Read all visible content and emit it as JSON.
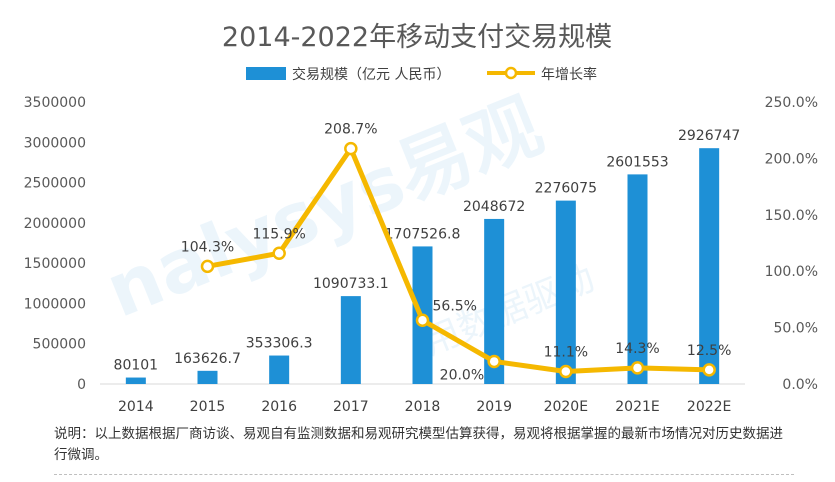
{
  "chart_data": {
    "type": "bar",
    "title": "2014-2022年移动支付交易规模",
    "categories": [
      "2014",
      "2015",
      "2016",
      "2017",
      "2018",
      "2019",
      "2020E",
      "2021E",
      "2022E"
    ],
    "series": [
      {
        "name": "交易规模（亿元 人民币）",
        "type": "bar",
        "axis": "left",
        "color": "#1e90d6",
        "values": [
          80101,
          163626.7,
          353306.3,
          1090733.1,
          1707526.8,
          2048672,
          2276075,
          2601553,
          2926747
        ],
        "labels": [
          "80101",
          "163626.7",
          "353306.3",
          "1090733.1",
          "1707526.8",
          "2048672",
          "2276075",
          "2601553",
          "2926747"
        ]
      },
      {
        "name": "年增长率",
        "type": "line",
        "axis": "right",
        "color": "#f5b800",
        "values": [
          null,
          104.3,
          115.9,
          208.7,
          56.5,
          20.0,
          11.1,
          14.3,
          12.5
        ],
        "labels": [
          "",
          "104.3%",
          "115.9%",
          "208.7%",
          "56.5%",
          "20.0%",
          "11.1%",
          "14.3%",
          "12.5%"
        ]
      }
    ],
    "y_left": {
      "range": [
        0,
        3500000
      ],
      "ticks": [
        "0",
        "500000",
        "1000000",
        "1500000",
        "2000000",
        "2500000",
        "3000000",
        "3500000"
      ]
    },
    "y_right": {
      "range": [
        0,
        250
      ],
      "unit": "%",
      "ticks": [
        "0.0%",
        "50.0%",
        "100.0%",
        "150.0%",
        "200.0%",
        "250.0%"
      ]
    },
    "legend_position": "top-center",
    "grid": false
  },
  "footnote": "说明：以上数据根据厂商访谈、易观自有监测数据和易观研究模型估算获得，易观将根据掌握的最新市场情况对历史数据进行微调。",
  "watermark": {
    "brand": "nalysys易观",
    "slogan": "用数据驱动"
  }
}
